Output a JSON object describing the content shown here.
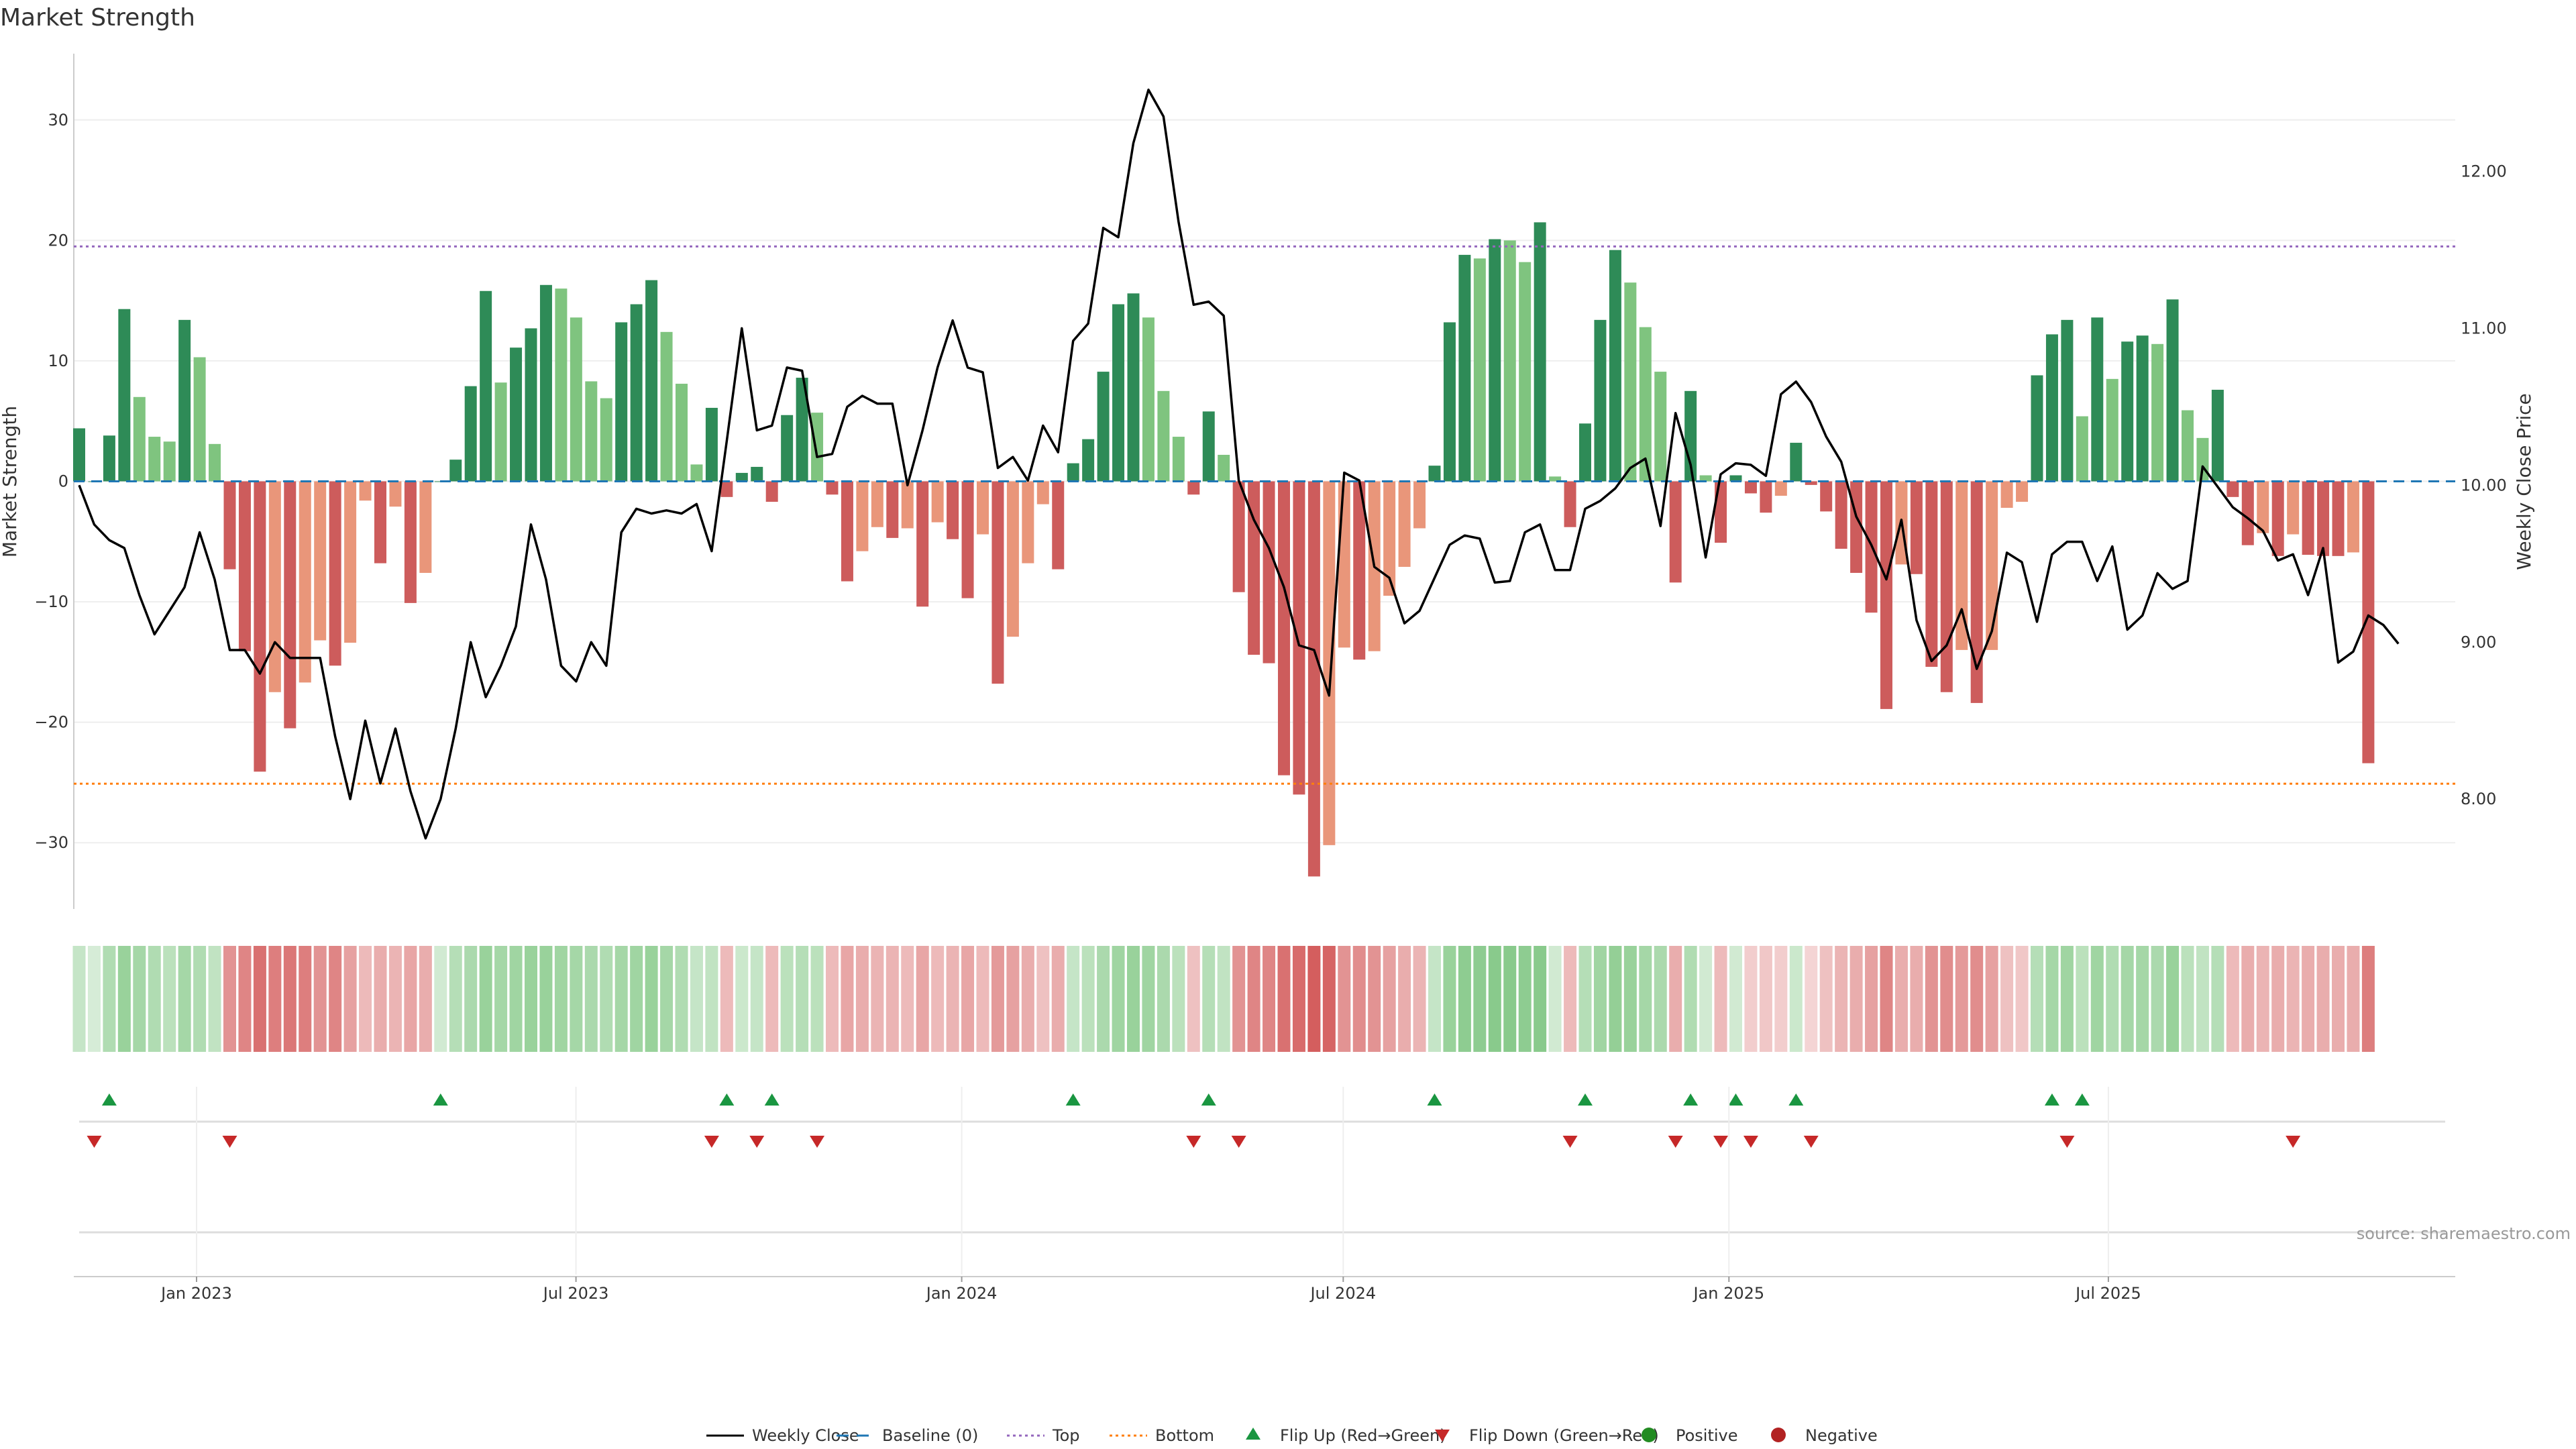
{
  "title": "Market Strength",
  "source": "source: sharemaestro.com",
  "colors": {
    "pos_dark": "#2e8b57",
    "pos_light": "#7fc47f",
    "neg_dark": "#cd5c5c",
    "neg_light": "#e9967a",
    "close_line": "#000000",
    "baseline": "#1f77b4",
    "top": "#9467bd",
    "bottom": "#ff7f0e",
    "flip_up": "#1a9641",
    "flip_down": "#c62828",
    "positive_dot": "#228b22",
    "negative_dot": "#b22222",
    "grid": "#eeeeee"
  },
  "legend": [
    {
      "key": "close",
      "label": "Weekly Close"
    },
    {
      "key": "baseline",
      "label": "Baseline (0)"
    },
    {
      "key": "top",
      "label": "Top"
    },
    {
      "key": "bottom",
      "label": "Bottom"
    },
    {
      "key": "flip_up",
      "label": "Flip Up (Red→Green)"
    },
    {
      "key": "flip_down",
      "label": "Flip Down (Green→Red)"
    },
    {
      "key": "positive",
      "label": "Positive"
    },
    {
      "key": "negative",
      "label": "Negative"
    }
  ],
  "chart_data": {
    "type": "bar",
    "ylabel": "Market Strength",
    "y2label": "Weekly Close Price",
    "ylim": [
      -35.5,
      35.5
    ],
    "y2lim": [
      7.3,
      12.75
    ],
    "yticks": [
      30,
      20,
      10,
      0,
      -10,
      -20,
      -30
    ],
    "ytick_labels": [
      "30",
      "20",
      "10",
      "0",
      "−10",
      "−20",
      "−30"
    ],
    "y2ticks": [
      12,
      11,
      10,
      9,
      8
    ],
    "y2tick_labels": [
      "12.00",
      "11.00",
      "10.00",
      "9.00",
      "8.00"
    ],
    "x_start": "2022-11-06",
    "x_end": "2025-11-02",
    "xticks": [
      "2023-01-01",
      "2023-07-01",
      "2024-01-01",
      "2024-07-01",
      "2025-01-01",
      "2025-07-01"
    ],
    "xtick_labels": [
      "Jan 2023",
      "Jul 2023",
      "Jan 2024",
      "Jul 2024",
      "Jan 2025",
      "Jul 2025"
    ],
    "top_level": 19.5,
    "bottom_level": -25.1,
    "strength": [
      4.4,
      0.0,
      3.8,
      14.3,
      7.0,
      3.7,
      3.3,
      13.4,
      10.3,
      3.1,
      -7.3,
      -14.1,
      -24.1,
      -17.5,
      -20.5,
      -16.7,
      -13.2,
      -15.3,
      -13.4,
      -1.6,
      -6.8,
      -2.1,
      -10.1,
      -7.6,
      0,
      1.8,
      7.9,
      15.8,
      8.2,
      11.1,
      12.7,
      16.3,
      16.0,
      13.6,
      8.3,
      6.9,
      13.2,
      14.7,
      16.7,
      12.4,
      8.1,
      1.4,
      6.1,
      -1.3,
      0.7,
      1.2,
      -1.7,
      5.5,
      8.6,
      5.7,
      -1.1,
      -8.3,
      -5.8,
      -3.8,
      -4.7,
      -3.9,
      -10.4,
      -3.4,
      -4.8,
      -9.7,
      -4.4,
      -16.8,
      -12.9,
      -6.8,
      -1.9,
      -7.3,
      1.5,
      3.5,
      9.1,
      14.7,
      15.6,
      13.6,
      7.5,
      3.7,
      -1.1,
      5.8,
      2.2,
      -9.2,
      -14.4,
      -15.1,
      -24.4,
      -26.0,
      -32.8,
      -30.2,
      -13.8,
      -14.8,
      -14.1,
      -9.5,
      -7.1,
      -3.9,
      1.3,
      13.2,
      18.8,
      18.5,
      20.1,
      20.0,
      18.2,
      21.5,
      0.4,
      -3.8,
      4.8,
      13.4,
      19.2,
      16.5,
      12.8,
      9.1,
      -8.4,
      7.5,
      0.5,
      -5.1,
      0.5,
      -1.0,
      -2.6,
      -1.2,
      3.2,
      -0.3,
      -2.5,
      -5.6,
      -7.6,
      -10.9,
      -18.9,
      -6.9,
      -7.7,
      -15.4,
      -17.5,
      -14.0,
      -18.4,
      -14.0,
      -2.2,
      -1.7,
      8.8,
      12.2,
      13.4,
      5.4,
      13.6,
      8.5,
      11.6,
      12.1,
      11.4,
      15.1,
      5.9,
      3.6,
      7.6,
      -1.3,
      -5.3,
      -4.3,
      -6.2,
      -4.4,
      -6.1,
      -6.2,
      -6.2,
      -5.9,
      -23.4
    ],
    "close": [
      10.0,
      9.75,
      9.65,
      9.6,
      9.3,
      9.05,
      9.2,
      9.35,
      9.7,
      9.4,
      8.95,
      8.95,
      8.8,
      9.0,
      8.9,
      8.9,
      8.9,
      8.4,
      8.0,
      8.5,
      8.1,
      8.45,
      8.05,
      7.75,
      8.0,
      8.45,
      9.0,
      8.65,
      8.85,
      9.1,
      9.75,
      9.4,
      8.85,
      8.75,
      9.0,
      8.85,
      9.7,
      9.85,
      9.82,
      9.84,
      9.82,
      9.88,
      9.58,
      10.28,
      11.0,
      10.35,
      10.38,
      10.75,
      10.73,
      10.18,
      10.2,
      10.5,
      10.57,
      10.52,
      10.52,
      10.0,
      10.35,
      10.75,
      11.05,
      10.75,
      10.72,
      10.11,
      10.18,
      10.03,
      10.38,
      10.21,
      10.92,
      11.03,
      11.64,
      11.58,
      12.18,
      12.52,
      12.35,
      11.68,
      11.15,
      11.17,
      11.08,
      10.03,
      9.78,
      9.6,
      9.35,
      8.98,
      8.95,
      8.66,
      10.08,
      10.03,
      9.48,
      9.41,
      9.12,
      9.2,
      9.41,
      9.62,
      9.68,
      9.66,
      9.38,
      9.39,
      9.7,
      9.75,
      9.46,
      9.46,
      9.85,
      9.9,
      9.98,
      10.11,
      10.17,
      9.74,
      10.46,
      10.13,
      9.54,
      10.07,
      10.14,
      10.13,
      10.06,
      10.58,
      10.66,
      10.53,
      10.31,
      10.15,
      9.8,
      9.62,
      9.4,
      9.78,
      9.14,
      8.88,
      8.98,
      9.21,
      8.83,
      9.07,
      9.57,
      9.51,
      9.13,
      9.56,
      9.64,
      9.64,
      9.39,
      9.61,
      9.08,
      9.17,
      9.44,
      9.34,
      9.39,
      10.12,
      9.99,
      9.86,
      9.79,
      9.71,
      9.52,
      9.56,
      9.3,
      9.6,
      8.87,
      8.94,
      9.17,
      9.11,
      8.99
    ],
    "regime_strength": [
      0.3,
      0.15,
      0.5,
      0.7,
      0.6,
      0.5,
      0.4,
      0.6,
      0.5,
      0.35,
      -0.6,
      -0.7,
      -0.85,
      -0.75,
      -0.8,
      -0.75,
      -0.6,
      -0.7,
      -0.5,
      -0.3,
      -0.4,
      -0.35,
      -0.45,
      -0.4,
      0.2,
      0.45,
      0.55,
      0.7,
      0.6,
      0.65,
      0.7,
      0.7,
      0.65,
      0.6,
      0.55,
      0.5,
      0.6,
      0.65,
      0.7,
      0.6,
      0.5,
      0.3,
      0.35,
      -0.3,
      0.25,
      0.3,
      -0.3,
      0.4,
      0.45,
      0.4,
      -0.3,
      -0.45,
      -0.4,
      -0.35,
      -0.35,
      -0.3,
      -0.45,
      -0.3,
      -0.35,
      -0.45,
      -0.3,
      -0.55,
      -0.5,
      -0.4,
      -0.25,
      -0.4,
      0.3,
      0.4,
      0.55,
      0.65,
      0.7,
      0.65,
      0.55,
      0.4,
      -0.25,
      0.45,
      0.35,
      -0.6,
      -0.7,
      -0.7,
      -0.85,
      -0.9,
      -1.0,
      -0.95,
      -0.6,
      -0.65,
      -0.6,
      -0.5,
      -0.4,
      -0.35,
      0.3,
      0.7,
      0.8,
      0.8,
      0.85,
      0.85,
      0.8,
      0.85,
      0.2,
      -0.3,
      0.45,
      0.65,
      0.75,
      0.7,
      0.6,
      0.55,
      -0.4,
      0.5,
      0.2,
      -0.3,
      0.2,
      -0.15,
      -0.2,
      -0.15,
      0.25,
      -0.1,
      -0.25,
      -0.35,
      -0.4,
      -0.5,
      -0.7,
      -0.4,
      -0.4,
      -0.6,
      -0.65,
      -0.55,
      -0.65,
      -0.5,
      -0.25,
      -0.2,
      0.45,
      0.6,
      0.65,
      0.4,
      0.65,
      0.5,
      0.6,
      0.6,
      0.55,
      0.7,
      0.4,
      0.35,
      0.45,
      -0.3,
      -0.4,
      -0.35,
      -0.4,
      -0.35,
      -0.4,
      -0.4,
      -0.4,
      -0.4,
      -0.75
    ],
    "flip_up_weeks": [
      2,
      24,
      43,
      46,
      66,
      75,
      90,
      100,
      107,
      110,
      114,
      131,
      133
    ],
    "flip_down_weeks": [
      1,
      10,
      42,
      45,
      49,
      74,
      77,
      99,
      106,
      109,
      111,
      115,
      132,
      147
    ]
  }
}
